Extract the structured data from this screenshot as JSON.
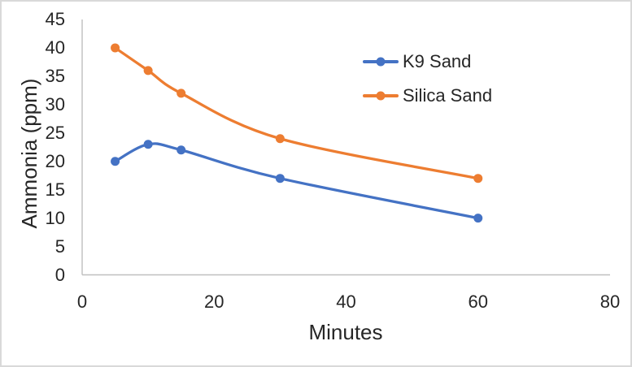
{
  "chart_data": {
    "type": "line",
    "title": "",
    "xlabel": "Minutes",
    "ylabel": "Ammonia (ppm)",
    "x": [
      5,
      10,
      15,
      30,
      60
    ],
    "series": [
      {
        "name": "K9 Sand",
        "color": "#4472C4",
        "values": [
          20,
          23,
          22,
          17,
          10
        ]
      },
      {
        "name": "Silica Sand",
        "color": "#ED7D31",
        "values": [
          40,
          36,
          32,
          24,
          17
        ]
      }
    ],
    "xlim": [
      0,
      80
    ],
    "ylim": [
      0,
      45
    ],
    "x_ticks": [
      0,
      20,
      40,
      60,
      80
    ],
    "y_ticks": [
      0,
      5,
      10,
      15,
      20,
      25,
      30,
      35,
      40,
      45
    ],
    "grid": false,
    "smoothed": true,
    "marker": "circle",
    "legend_position": "inside-top-right",
    "axis_color": "#BFBFBF",
    "text_color": "#262626",
    "background_color": "#FFFFFF",
    "border_color": "#D9D9D9"
  }
}
